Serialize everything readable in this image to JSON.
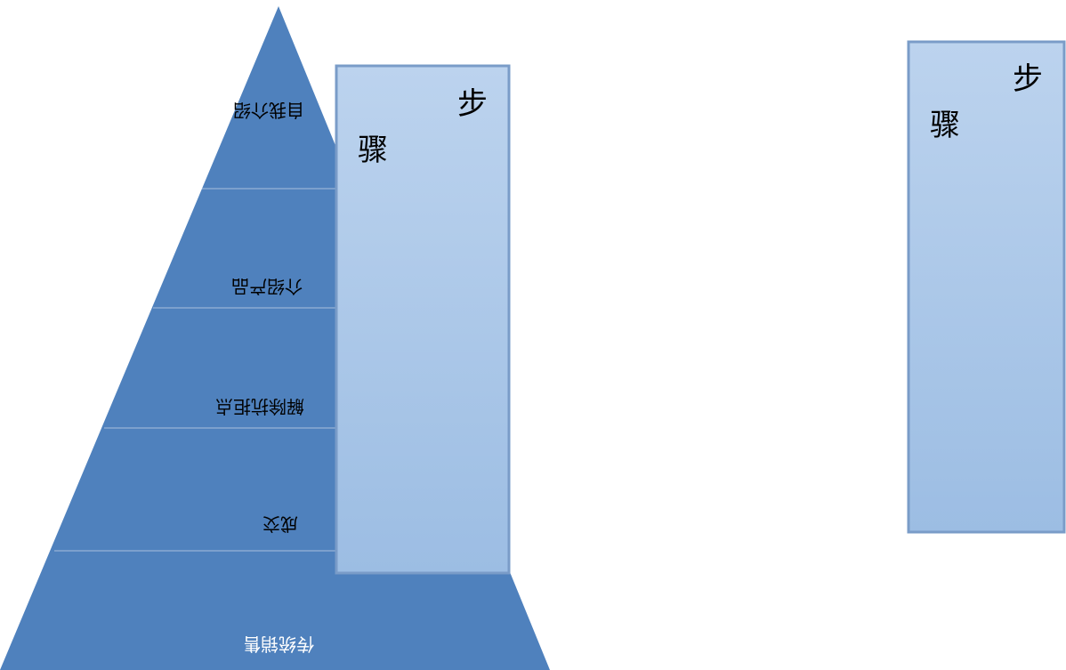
{
  "colors": {
    "pyramid_fill": "#4f81bd",
    "pyramid_divider": "#a8bedd",
    "box_fill_top": "#bcd3ee",
    "box_fill_bottom": "#9cbde3",
    "box_border": "#7a9cc8",
    "dark_label": "#000000",
    "light_label": "#ffffff"
  },
  "pyramid": {
    "levels": [
      {
        "label": "自我介绍"
      },
      {
        "label": "介绍产品"
      },
      {
        "label": "解除抗拒点"
      },
      {
        "label": "成交"
      },
      {
        "label": "传统销售"
      }
    ]
  },
  "step_boxes": [
    {
      "char_top": "步",
      "char_bottom": "骤"
    },
    {
      "char_top": "步",
      "char_bottom": "骤"
    }
  ]
}
